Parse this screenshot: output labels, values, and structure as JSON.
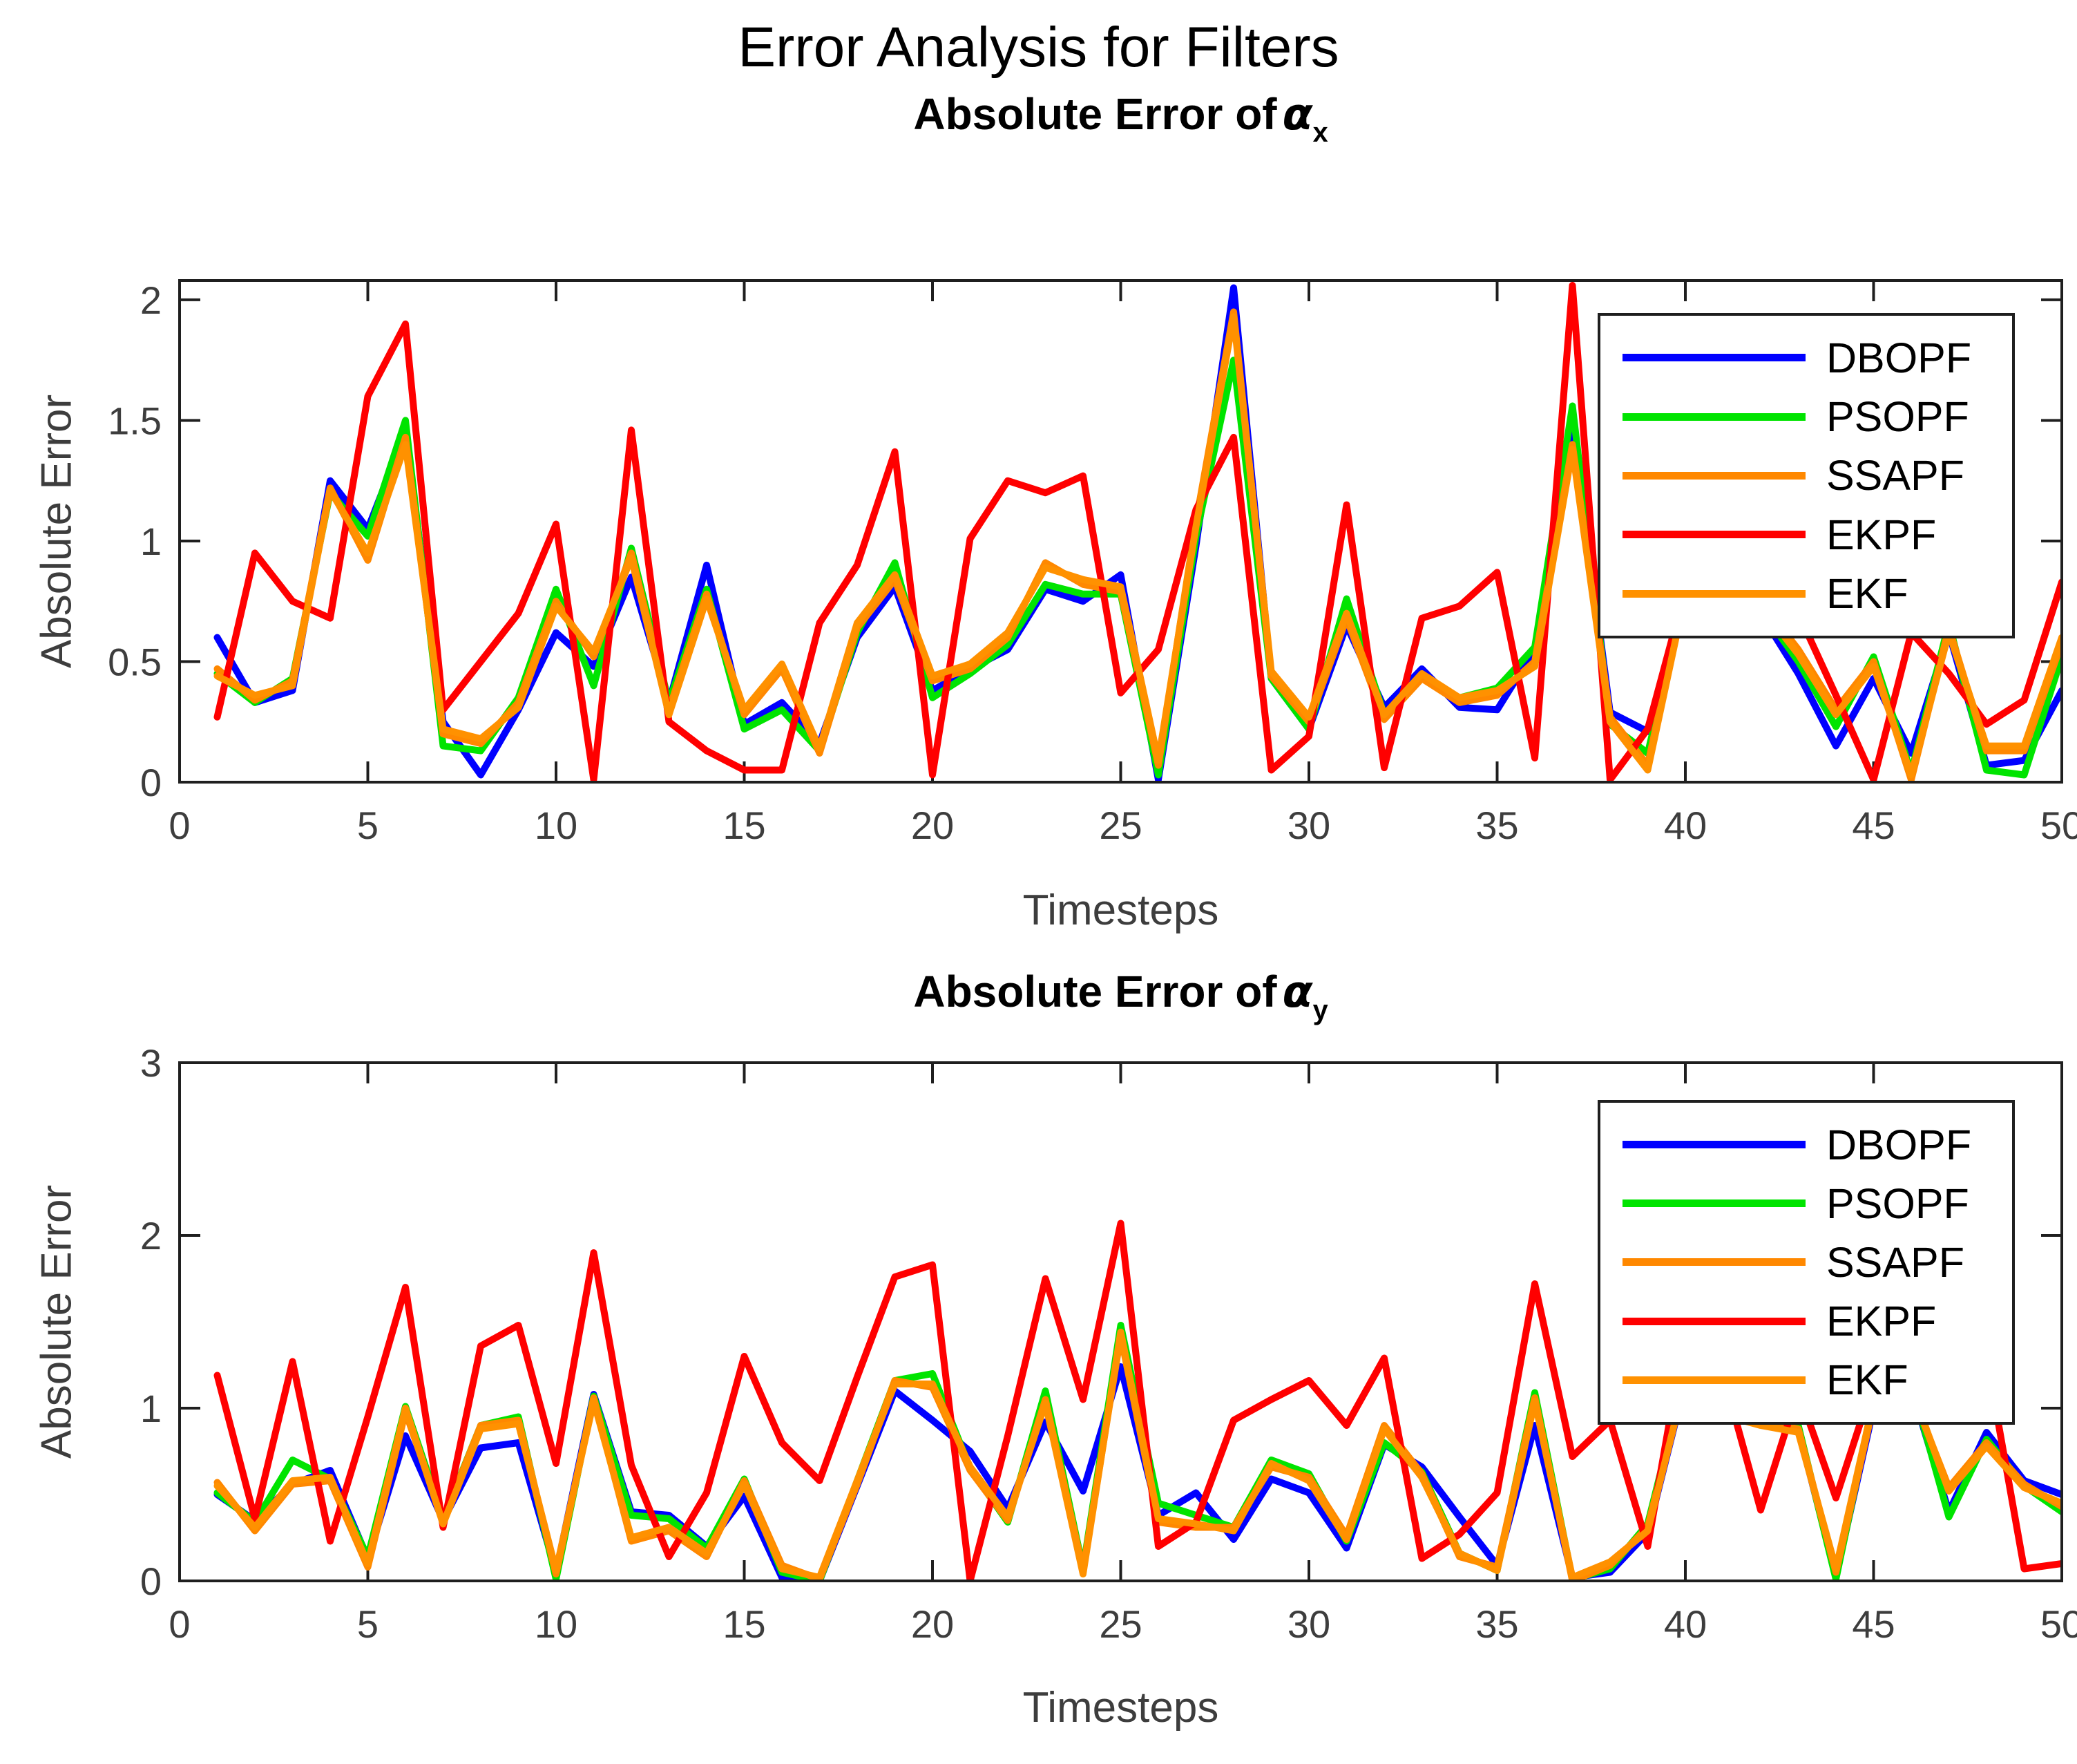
{
  "figure_title": "Error Analysis for Filters",
  "chart_data": [
    {
      "type": "line",
      "title": {
        "prefix": "Absolute Error of",
        "symbol": "α",
        "subscript": "x"
      },
      "xlabel": "Timesteps",
      "ylabel": "Absolute Error",
      "xlim": [
        0,
        50
      ],
      "ylim": [
        0,
        2.08
      ],
      "xticks": [
        0,
        5,
        10,
        15,
        20,
        25,
        30,
        35,
        40,
        45,
        50
      ],
      "yticks": [
        0,
        0.5,
        1,
        1.5,
        2
      ],
      "grid": false,
      "legend_position": "top-right",
      "x": [
        1,
        2,
        3,
        4,
        5,
        6,
        7,
        8,
        9,
        10,
        11,
        12,
        13,
        14,
        15,
        16,
        17,
        18,
        19,
        20,
        21,
        22,
        23,
        24,
        25,
        26,
        27,
        28,
        29,
        30,
        31,
        32,
        33,
        34,
        35,
        36,
        37,
        38,
        39,
        40,
        41,
        42,
        43,
        44,
        45,
        46,
        47,
        48,
        49,
        50
      ],
      "series": [
        {
          "name": "DBOPF",
          "color": "#0000FF",
          "values": [
            0.6,
            0.33,
            0.38,
            1.25,
            1.05,
            1.45,
            0.25,
            0.03,
            0.3,
            0.62,
            0.48,
            0.85,
            0.33,
            0.9,
            0.24,
            0.33,
            0.16,
            0.6,
            0.81,
            0.38,
            0.47,
            0.55,
            0.8,
            0.75,
            0.86,
            0.01,
            0.98,
            2.05,
            0.43,
            0.22,
            0.65,
            0.31,
            0.47,
            0.31,
            0.3,
            0.55,
            1.5,
            0.29,
            0.21,
            0.75,
            0.97,
            0.7,
            0.45,
            0.15,
            0.43,
            0.12,
            0.62,
            0.07,
            0.09,
            0.38
          ]
        },
        {
          "name": "PSOPF",
          "color": "#00E400",
          "values": [
            0.45,
            0.33,
            0.43,
            1.2,
            1.02,
            1.5,
            0.15,
            0.13,
            0.35,
            0.8,
            0.4,
            0.97,
            0.33,
            0.8,
            0.22,
            0.3,
            0.13,
            0.62,
            0.91,
            0.35,
            0.45,
            0.57,
            0.82,
            0.78,
            0.78,
            0.03,
            1.02,
            1.75,
            0.43,
            0.22,
            0.76,
            0.28,
            0.44,
            0.35,
            0.39,
            0.56,
            1.56,
            0.24,
            0.12,
            0.78,
            0.95,
            0.72,
            0.5,
            0.23,
            0.52,
            0.04,
            0.66,
            0.05,
            0.03,
            0.52
          ]
        },
        {
          "name": "SSAPF",
          "color": "#FF8800",
          "values": [
            0.47,
            0.34,
            0.42,
            1.22,
            0.92,
            1.43,
            0.2,
            0.16,
            0.33,
            0.75,
            0.52,
            0.95,
            0.3,
            0.78,
            0.28,
            0.47,
            0.12,
            0.64,
            0.84,
            0.42,
            0.47,
            0.6,
            0.91,
            0.82,
            0.79,
            0.07,
            1.08,
            1.95,
            0.44,
            0.25,
            0.68,
            0.26,
            0.43,
            0.33,
            0.36,
            0.5,
            1.4,
            0.27,
            0.07,
            0.8,
            0.92,
            0.75,
            0.55,
            0.3,
            0.5,
            0.01,
            0.64,
            0.13,
            0.13,
            0.58
          ]
        },
        {
          "name": "EKPF",
          "color": "#FF0000",
          "values": [
            0.27,
            0.95,
            0.75,
            0.68,
            1.6,
            1.9,
            0.3,
            0.5,
            0.7,
            1.07,
            0.01,
            1.46,
            0.25,
            0.13,
            0.05,
            0.05,
            0.66,
            0.9,
            1.37,
            0.03,
            1.01,
            1.25,
            1.2,
            1.27,
            0.37,
            0.55,
            1.13,
            1.43,
            0.05,
            0.19,
            1.15,
            0.06,
            0.68,
            0.73,
            0.87,
            0.1,
            2.06,
            0.01,
            0.22,
            0.8,
            1.1,
            0.9,
            0.7,
            0.36,
            0.01,
            0.62,
            0.45,
            0.24,
            0.34,
            0.83
          ]
        },
        {
          "name": "EKF",
          "color": "#FF9100",
          "values": [
            0.44,
            0.36,
            0.4,
            1.21,
            0.95,
            1.4,
            0.22,
            0.18,
            0.31,
            0.73,
            0.54,
            0.93,
            0.28,
            0.76,
            0.3,
            0.49,
            0.14,
            0.66,
            0.86,
            0.44,
            0.49,
            0.62,
            0.89,
            0.84,
            0.81,
            0.09,
            1.06,
            1.93,
            0.46,
            0.27,
            0.7,
            0.28,
            0.45,
            0.35,
            0.38,
            0.48,
            1.38,
            0.25,
            0.05,
            0.78,
            0.9,
            0.73,
            0.53,
            0.28,
            0.48,
            0.03,
            0.62,
            0.15,
            0.15,
            0.6
          ]
        }
      ]
    },
    {
      "type": "line",
      "title": {
        "prefix": "Absolute Error of",
        "symbol": "α",
        "subscript": "y"
      },
      "xlabel": "Timesteps",
      "ylabel": "Absolute Error",
      "xlim": [
        0,
        50
      ],
      "ylim": [
        0,
        3
      ],
      "xticks": [
        0,
        5,
        10,
        15,
        20,
        25,
        30,
        35,
        40,
        45,
        50
      ],
      "yticks": [
        0,
        1,
        2,
        3
      ],
      "grid": false,
      "legend_position": "top-right",
      "x": [
        1,
        2,
        3,
        4,
        5,
        6,
        7,
        8,
        9,
        10,
        11,
        12,
        13,
        14,
        15,
        16,
        17,
        18,
        19,
        20,
        21,
        22,
        23,
        24,
        25,
        26,
        27,
        28,
        29,
        30,
        31,
        32,
        33,
        34,
        35,
        36,
        37,
        38,
        39,
        40,
        41,
        42,
        43,
        44,
        45,
        46,
        47,
        48,
        49,
        50
      ],
      "series": [
        {
          "name": "DBOPF",
          "color": "#0000FF",
          "values": [
            0.5,
            0.35,
            0.56,
            0.64,
            0.13,
            0.84,
            0.35,
            0.77,
            0.8,
            0.05,
            1.08,
            0.4,
            0.38,
            0.2,
            0.49,
            0.02,
            0.0,
            0.55,
            1.1,
            0.93,
            0.75,
            0.42,
            0.92,
            0.52,
            1.24,
            0.38,
            0.51,
            0.24,
            0.59,
            0.51,
            0.19,
            0.79,
            0.66,
            0.37,
            0.09,
            0.9,
            0.02,
            0.05,
            0.28,
            1.15,
            0.97,
            0.93,
            0.88,
            0.03,
            1.0,
            1.12,
            0.4,
            0.86,
            0.58,
            0.5
          ]
        },
        {
          "name": "PSOPF",
          "color": "#00E400",
          "values": [
            0.51,
            0.34,
            0.7,
            0.59,
            0.14,
            1.01,
            0.36,
            0.9,
            0.95,
            0.01,
            1.07,
            0.38,
            0.36,
            0.19,
            0.59,
            0.05,
            0.0,
            0.58,
            1.16,
            1.2,
            0.65,
            0.34,
            1.1,
            0.07,
            1.48,
            0.45,
            0.38,
            0.31,
            0.7,
            0.62,
            0.23,
            0.8,
            0.63,
            0.16,
            0.06,
            1.09,
            0.01,
            0.07,
            0.33,
            1.2,
            0.97,
            0.95,
            0.9,
            0.01,
            1.05,
            1.15,
            0.37,
            0.82,
            0.55,
            0.4
          ]
        },
        {
          "name": "SSAPF",
          "color": "#FF8800",
          "values": [
            0.57,
            0.29,
            0.56,
            0.58,
            0.08,
            0.98,
            0.35,
            0.9,
            0.93,
            0.04,
            1.06,
            0.23,
            0.29,
            0.14,
            0.58,
            0.09,
            0.01,
            0.56,
            1.16,
            1.12,
            0.64,
            0.35,
            1.05,
            0.06,
            1.42,
            0.34,
            0.31,
            0.31,
            0.66,
            0.6,
            0.26,
            0.9,
            0.62,
            0.14,
            0.08,
            1.06,
            0.0,
            0.09,
            0.31,
            1.18,
            0.94,
            0.92,
            0.88,
            0.05,
            1.02,
            1.1,
            0.54,
            0.8,
            0.56,
            0.43
          ]
        },
        {
          "name": "EKPF",
          "color": "#FF0000",
          "values": [
            1.19,
            0.36,
            1.27,
            0.23,
            0.95,
            1.7,
            0.31,
            1.36,
            1.48,
            0.68,
            1.9,
            0.67,
            0.14,
            0.51,
            1.3,
            0.8,
            0.58,
            1.18,
            1.76,
            1.83,
            0.0,
            0.84,
            1.75,
            1.05,
            2.07,
            0.2,
            0.34,
            0.93,
            1.05,
            1.16,
            0.9,
            1.29,
            0.13,
            0.27,
            0.51,
            1.72,
            0.72,
            0.93,
            0.2,
            1.45,
            1.2,
            0.41,
            1.1,
            0.48,
            1.15,
            1.35,
            1.2,
            1.3,
            0.07,
            0.1
          ]
        },
        {
          "name": "EKF",
          "color": "#FF9100",
          "values": [
            0.55,
            0.31,
            0.58,
            0.6,
            0.1,
            1.0,
            0.33,
            0.88,
            0.91,
            0.06,
            1.04,
            0.25,
            0.31,
            0.16,
            0.56,
            0.07,
            0.02,
            0.58,
            1.14,
            1.14,
            0.66,
            0.37,
            1.03,
            0.04,
            1.44,
            0.36,
            0.33,
            0.29,
            0.68,
            0.58,
            0.24,
            0.88,
            0.6,
            0.16,
            0.06,
            1.04,
            0.02,
            0.11,
            0.29,
            1.16,
            0.96,
            0.9,
            0.86,
            0.07,
            1.04,
            1.12,
            0.52,
            0.78,
            0.54,
            0.45
          ]
        }
      ]
    }
  ]
}
